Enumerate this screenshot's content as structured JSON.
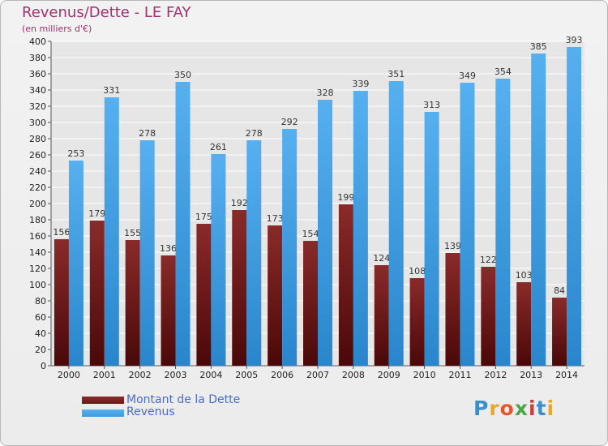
{
  "title": "Revenus/Dette - LE FAY",
  "subtitle": "(en milliers d'€)",
  "logo": {
    "text": "Proxiti",
    "letter_colors": [
      "#3d8ec9",
      "#e8a92a",
      "#e05a2a",
      "#4aa74a",
      "#c94040",
      "#3d8ec9",
      "#e8a92a"
    ]
  },
  "colors": {
    "dette": "#6e1818",
    "revenus": "#3c9ce0"
  },
  "chart_data": {
    "type": "bar",
    "title": "Revenus/Dette - LE FAY",
    "subtitle": "(en milliers d'€)",
    "categories": [
      "2000",
      "2001",
      "2002",
      "2003",
      "2004",
      "2005",
      "2006",
      "2007",
      "2008",
      "2009",
      "2010",
      "2011",
      "2012",
      "2013",
      "2014"
    ],
    "series": [
      {
        "name": "Montant de la Dette",
        "values": [
          156,
          179,
          155,
          136,
          175,
          192,
          173,
          154,
          199,
          124,
          108,
          139,
          122,
          103,
          84
        ]
      },
      {
        "name": "Revenus",
        "values": [
          253,
          331,
          278,
          350,
          261,
          278,
          292,
          328,
          339,
          351,
          313,
          349,
          354,
          385,
          393
        ]
      }
    ],
    "ylim": [
      0,
      400
    ],
    "yticks": [
      0,
      20,
      40,
      60,
      80,
      100,
      120,
      140,
      160,
      180,
      200,
      220,
      240,
      260,
      280,
      300,
      320,
      340,
      360,
      380,
      400
    ],
    "grid": true,
    "legend_position": "bottom-left"
  }
}
